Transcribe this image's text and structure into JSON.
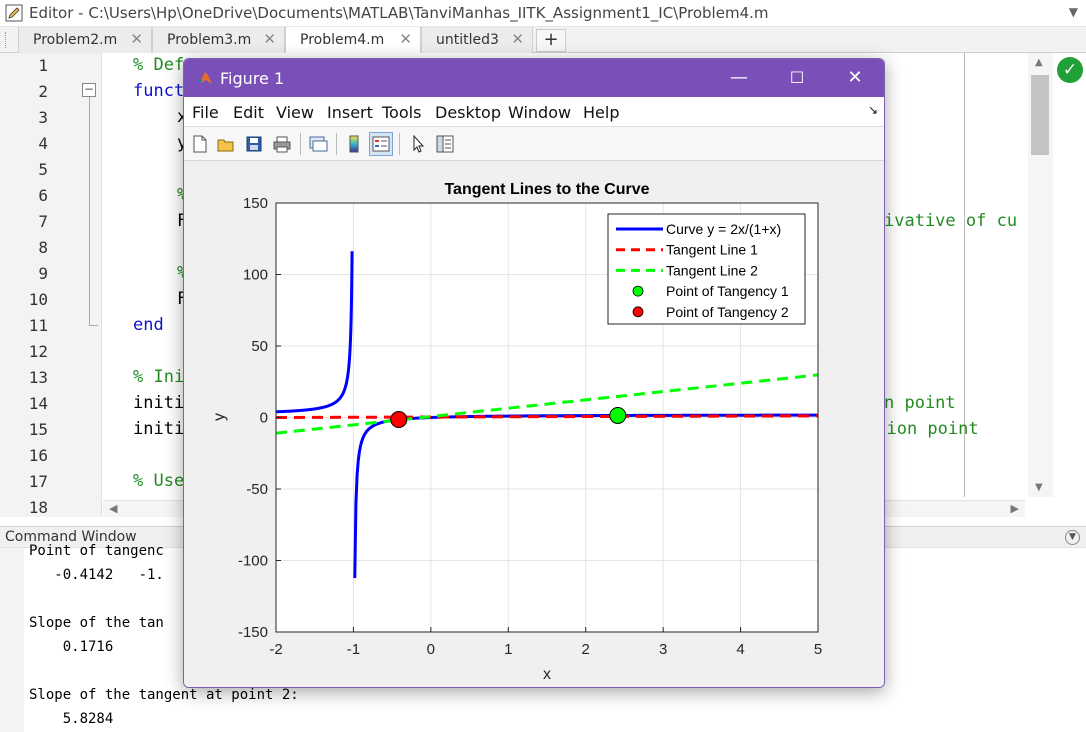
{
  "editor": {
    "title": "Editor - C:\\Users\\Hp\\OneDrive\\Documents\\MATLAB\\TanviManhas_IITK_Assignment1_IC\\Problem4.m",
    "tabs": [
      {
        "label": "Problem2.m",
        "active": false
      },
      {
        "label": "Problem3.m",
        "active": false
      },
      {
        "label": "Problem4.m",
        "active": true
      },
      {
        "label": "untitled3",
        "active": false
      }
    ],
    "line_numbers": [
      "1",
      "2",
      "3",
      "4",
      "5",
      "6",
      "7",
      "8",
      "9",
      "10",
      "11",
      "12",
      "13",
      "14",
      "15",
      "16",
      "17",
      "18"
    ],
    "code": [
      {
        "text": "% Def",
        "kind": "comment",
        "indent": 0
      },
      {
        "text": "funct",
        "kind": "keyword",
        "indent": 0
      },
      {
        "text": "x",
        "kind": "text",
        "indent": 4
      },
      {
        "text": "y",
        "kind": "text",
        "indent": 4
      },
      {
        "text": "",
        "kind": "text",
        "indent": 0
      },
      {
        "text": "%",
        "kind": "comment",
        "indent": 4
      },
      {
        "text": "F",
        "kind": "text",
        "indent": 4
      },
      {
        "text": "",
        "kind": "text",
        "indent": 0
      },
      {
        "text": "%",
        "kind": "comment",
        "indent": 4
      },
      {
        "text": "F",
        "kind": "text",
        "indent": 4
      },
      {
        "text": "end",
        "kind": "keyword",
        "indent": 0
      },
      {
        "text": "",
        "kind": "text",
        "indent": 0
      },
      {
        "text": "% Ini",
        "kind": "comment",
        "indent": 0
      },
      {
        "text": "initi",
        "kind": "text",
        "indent": 0
      },
      {
        "text": "initi",
        "kind": "text",
        "indent": 0
      },
      {
        "text": "",
        "kind": "text",
        "indent": 0
      },
      {
        "text": "% Use",
        "kind": "comment",
        "indent": 0
      },
      {
        "text": "",
        "kind": "text",
        "indent": 0
      }
    ],
    "code_right": [
      {
        "line": 7,
        "text": "ivative of cu",
        "kind": "comment"
      },
      {
        "line": 14,
        "text": "n point",
        "kind": "comment"
      },
      {
        "line": 15,
        "text": "ction point",
        "kind": "comment"
      }
    ]
  },
  "command_window": {
    "title": "Command Window",
    "lines": [
      "Point of tangenc",
      "   -0.4142   -1.",
      "",
      "Slope of the tan",
      "    0.1716",
      "",
      "Slope of the tangent at point 2:",
      "    5.8284"
    ]
  },
  "figure": {
    "title": "Figure 1",
    "menu": [
      "File",
      "Edit",
      "View",
      "Insert",
      "Tools",
      "Desktop",
      "Window",
      "Help"
    ],
    "toolbar_icons": [
      "new-figure-icon",
      "open-file-icon",
      "save-icon",
      "print-icon",
      "link-plot-icon",
      "colorbar-icon",
      "legend-icon",
      "pointer-icon",
      "property-inspector-icon"
    ]
  },
  "chart_data": {
    "type": "line",
    "title": "Tangent Lines to the Curve",
    "xlabel": "x",
    "ylabel": "y",
    "xlim": [
      -2,
      5
    ],
    "ylim": [
      -150,
      150
    ],
    "xticks": [
      -2,
      -1,
      0,
      1,
      2,
      3,
      4,
      5
    ],
    "yticks": [
      150,
      100,
      50,
      0,
      -50,
      -100,
      -150
    ],
    "grid": true,
    "legend_position": "top-right",
    "series": [
      {
        "name": "Curve y = 2x/(1+x)",
        "style": "solid",
        "color": "#0000ff",
        "function": "2x/(1+x)",
        "x_range_left": [
          -2,
          -1.0175
        ],
        "x_range_right": [
          -0.9825,
          5
        ]
      },
      {
        "name": "Tangent Line 1",
        "style": "dashed",
        "color": "#ff0000",
        "x": [
          -2,
          5
        ],
        "y": [
          -0.01,
          1.19
        ]
      },
      {
        "name": "Tangent Line 2",
        "style": "dashed",
        "color": "#00ff00",
        "x": [
          -2,
          5
        ],
        "y": [
          -11,
          29.8
        ]
      },
      {
        "name": "Point of Tangency 1",
        "style": "marker",
        "color": "#00ff00",
        "x": [
          2.4142
        ],
        "y": [
          1.4142
        ]
      },
      {
        "name": "Point of Tangency 2",
        "style": "marker",
        "color": "#ff0000",
        "x": [
          -0.4142
        ],
        "y": [
          -1.4142
        ]
      }
    ]
  }
}
